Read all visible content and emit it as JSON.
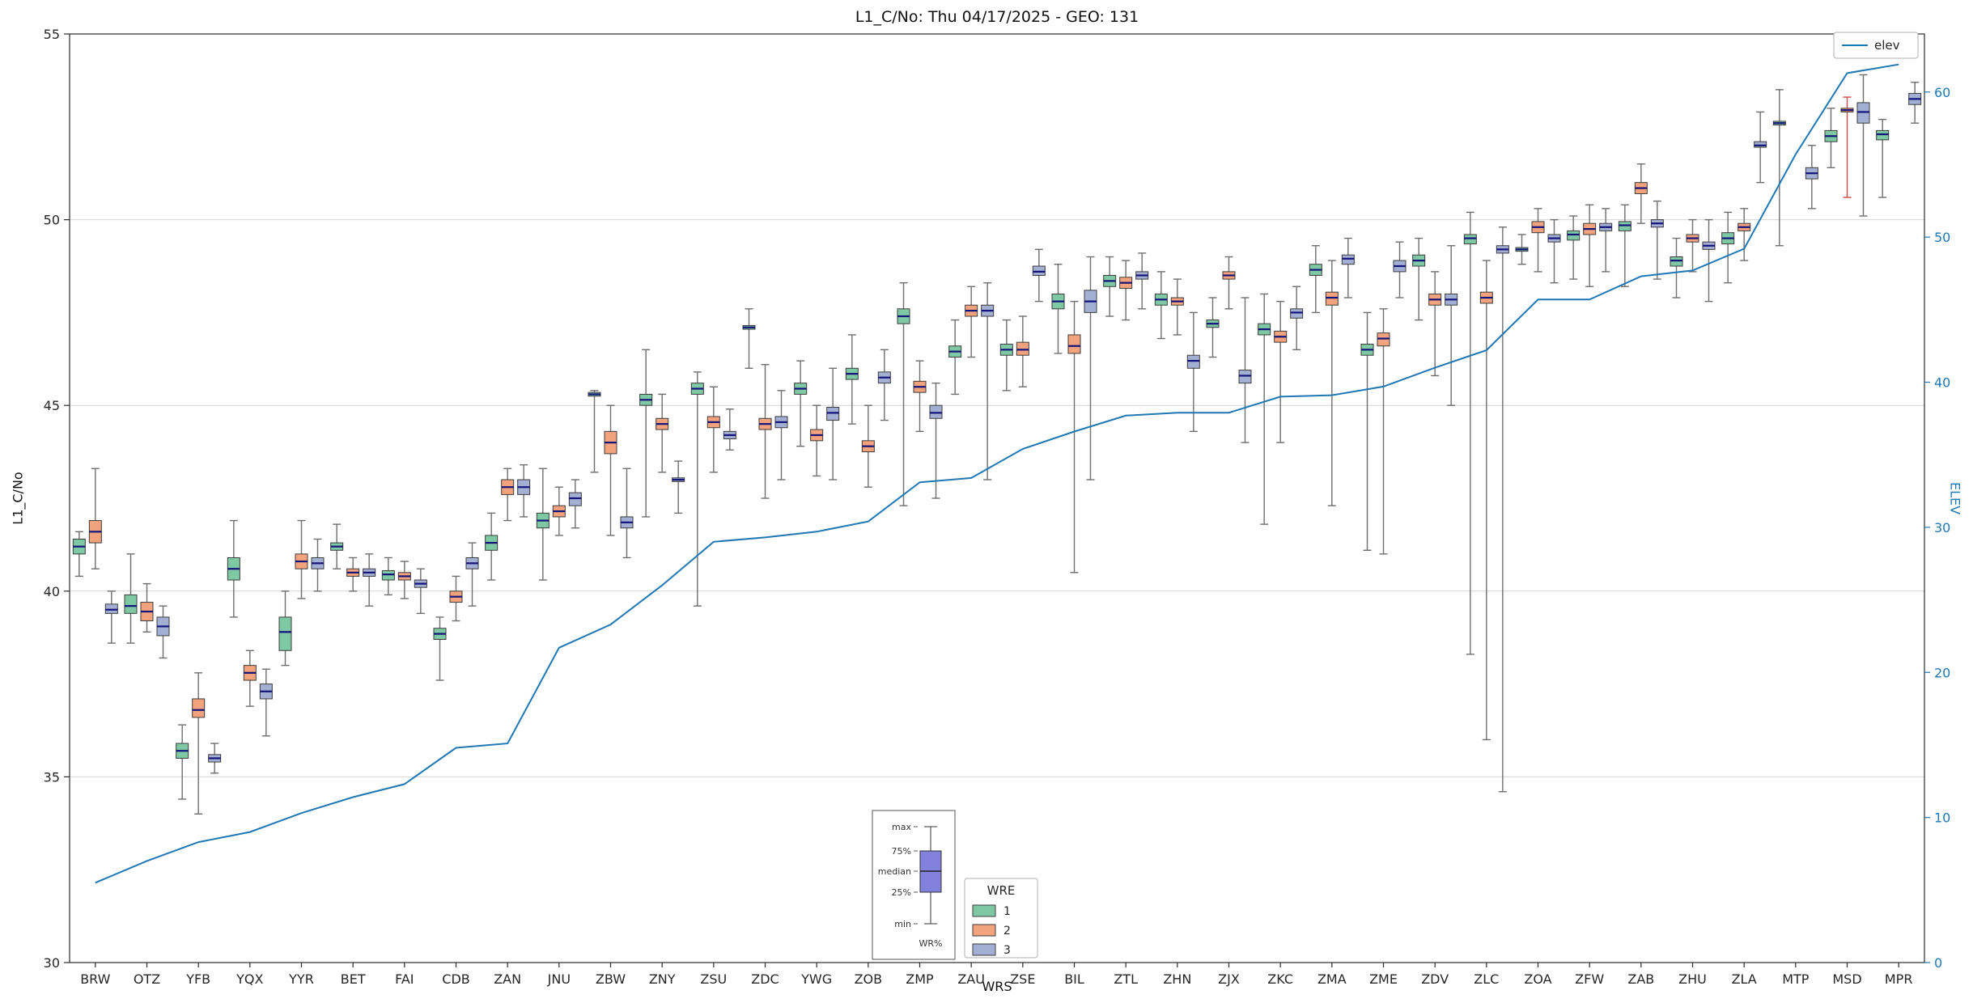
{
  "chart_data": {
    "type": "boxplot+line",
    "title": "L1_C/No: Thu 04/17/2025 - GEO: 131",
    "xlabel": "WRS",
    "ylabel": "L1_C/No",
    "y2label": "ELEV",
    "ylim": [
      30,
      55
    ],
    "y2lim": [
      0,
      64
    ],
    "yticks": [
      30,
      35,
      40,
      45,
      50,
      55
    ],
    "y2ticks": [
      0,
      10,
      20,
      30,
      40,
      50,
      60
    ],
    "grid": "horizontal-major",
    "legend": {
      "line_label": "elev",
      "line_color": "#1f77b4",
      "box_title": "WRE",
      "entries": [
        "1",
        "2",
        "3"
      ]
    },
    "inset": {
      "labels": [
        "max",
        "75%",
        "median",
        "25%",
        "min"
      ],
      "xlabel": "WR%",
      "box_color": "#8282dc"
    },
    "boxplot_semantics": [
      "min",
      "q1",
      "median",
      "q3",
      "max"
    ],
    "categories": [
      "BRW",
      "OTZ",
      "YFB",
      "YQX",
      "YYR",
      "BET",
      "FAI",
      "CDB",
      "ZAN",
      "JNU",
      "ZBW",
      "ZNY",
      "ZSU",
      "ZDC",
      "YWG",
      "ZOB",
      "ZMP",
      "ZAU",
      "ZSE",
      "BIL",
      "ZTL",
      "ZHN",
      "ZJX",
      "ZKC",
      "ZMA",
      "ZME",
      "ZDV",
      "ZLC",
      "ZOA",
      "ZFW",
      "ZAB",
      "ZHU",
      "ZLA",
      "MTP",
      "MSD",
      "MPR"
    ],
    "elev": [
      5.5,
      7.0,
      8.3,
      9.0,
      10.3,
      11.4,
      12.3,
      14.8,
      15.1,
      21.7,
      23.3,
      26.0,
      29.0,
      29.3,
      29.7,
      30.4,
      33.1,
      33.4,
      35.4,
      36.6,
      37.7,
      37.9,
      37.9,
      39.0,
      39.1,
      39.7,
      41.0,
      42.2,
      45.7,
      45.7,
      47.3,
      47.7,
      49.2,
      55.7,
      61.3,
      61.9
    ],
    "red_whisker": {
      "series": "2",
      "category": "MSD",
      "color": "#cf4a4a"
    },
    "series": [
      {
        "name": "1",
        "color": "#7ec8a4",
        "boxes": [
          [
            40.4,
            41.0,
            41.2,
            41.4,
            41.6
          ],
          [
            38.6,
            39.4,
            39.6,
            39.9,
            41.0
          ],
          [
            34.4,
            35.5,
            35.7,
            35.9,
            36.4
          ],
          [
            39.3,
            40.3,
            40.6,
            40.9,
            41.9
          ],
          [
            38.0,
            38.4,
            38.9,
            39.3,
            40.0
          ],
          [
            40.6,
            41.1,
            41.2,
            41.3,
            41.8
          ],
          [
            39.9,
            40.3,
            40.45,
            40.55,
            40.9
          ],
          [
            37.6,
            38.7,
            38.85,
            39.0,
            39.3
          ],
          [
            40.3,
            41.1,
            41.3,
            41.5,
            42.1
          ],
          [
            40.3,
            41.7,
            41.9,
            42.1,
            43.3
          ],
          [
            43.2,
            45.25,
            45.3,
            45.35,
            45.4
          ],
          [
            42.0,
            45.0,
            45.15,
            45.3,
            46.5
          ],
          [
            39.6,
            45.3,
            45.45,
            45.6,
            45.9
          ],
          [
            46.0,
            47.05,
            47.1,
            47.15,
            47.6
          ],
          [
            43.9,
            45.3,
            45.45,
            45.6,
            46.2
          ],
          [
            44.5,
            45.7,
            45.85,
            46.0,
            46.9
          ],
          [
            42.3,
            47.2,
            47.4,
            47.6,
            48.3
          ],
          [
            45.3,
            46.3,
            46.45,
            46.6,
            47.3
          ],
          [
            45.4,
            46.35,
            46.5,
            46.65,
            47.3
          ],
          [
            46.4,
            47.6,
            47.8,
            48.0,
            48.8
          ],
          [
            47.4,
            48.2,
            48.35,
            48.5,
            49.0
          ],
          [
            46.8,
            47.7,
            47.85,
            48.0,
            48.6
          ],
          [
            46.3,
            47.1,
            47.2,
            47.3,
            47.9
          ],
          [
            41.8,
            46.9,
            47.05,
            47.2,
            48.0
          ],
          [
            47.5,
            48.5,
            48.65,
            48.8,
            49.3
          ],
          [
            41.1,
            46.35,
            46.5,
            46.65,
            47.5
          ],
          [
            47.3,
            48.75,
            48.9,
            49.05,
            49.5
          ],
          [
            38.3,
            49.35,
            49.5,
            49.6,
            50.2
          ],
          [
            48.8,
            49.15,
            49.2,
            49.25,
            49.6
          ],
          [
            48.4,
            49.45,
            49.6,
            49.7,
            50.1
          ],
          [
            48.2,
            49.7,
            49.85,
            49.95,
            50.4
          ],
          [
            47.9,
            48.75,
            48.9,
            49.0,
            49.5
          ],
          [
            48.3,
            49.35,
            49.5,
            49.65,
            50.2
          ],
          [
            49.3,
            52.55,
            52.6,
            52.65,
            53.5
          ],
          [
            51.4,
            52.1,
            52.25,
            52.4,
            53.0
          ],
          [
            50.6,
            52.15,
            52.3,
            52.4,
            52.7
          ]
        ]
      },
      {
        "name": "2",
        "color": "#f2a27c",
        "boxes": [
          [
            40.6,
            41.3,
            41.6,
            41.9,
            43.3
          ],
          [
            38.9,
            39.2,
            39.45,
            39.7,
            40.2
          ],
          [
            34.0,
            36.6,
            36.8,
            37.1,
            37.8
          ],
          [
            36.9,
            37.6,
            37.8,
            38.0,
            38.4
          ],
          [
            39.8,
            40.6,
            40.8,
            41.0,
            41.9
          ],
          [
            40.0,
            40.4,
            40.5,
            40.6,
            40.9
          ],
          [
            39.8,
            40.3,
            40.4,
            40.5,
            40.8
          ],
          [
            39.2,
            39.7,
            39.85,
            40.0,
            40.4
          ],
          [
            41.9,
            42.6,
            42.8,
            43.0,
            43.3
          ],
          [
            41.5,
            42.0,
            42.15,
            42.3,
            42.8
          ],
          [
            41.5,
            43.7,
            44.0,
            44.3,
            45.0
          ],
          [
            43.2,
            44.35,
            44.5,
            44.65,
            45.3
          ],
          [
            43.2,
            44.4,
            44.55,
            44.7,
            45.5
          ],
          [
            42.5,
            44.35,
            44.5,
            44.65,
            46.1
          ],
          [
            43.1,
            44.05,
            44.2,
            44.35,
            45.0
          ],
          [
            42.8,
            43.75,
            43.9,
            44.05,
            45.0
          ],
          [
            44.3,
            45.35,
            45.5,
            45.65,
            46.2
          ],
          [
            46.3,
            47.4,
            47.55,
            47.7,
            48.2
          ],
          [
            45.5,
            46.35,
            46.5,
            46.7,
            47.4
          ],
          [
            40.5,
            46.4,
            46.6,
            46.9,
            47.8
          ],
          [
            47.3,
            48.15,
            48.3,
            48.45,
            48.9
          ],
          [
            46.9,
            47.7,
            47.8,
            47.9,
            48.4
          ],
          [
            47.6,
            48.4,
            48.5,
            48.6,
            49.0
          ],
          [
            44.0,
            46.7,
            46.85,
            47.0,
            47.8
          ],
          [
            42.3,
            47.7,
            47.9,
            48.05,
            48.9
          ],
          [
            41.0,
            46.6,
            46.8,
            46.95,
            47.6
          ],
          [
            45.8,
            47.7,
            47.85,
            48.0,
            48.6
          ],
          [
            36.0,
            47.75,
            47.9,
            48.05,
            48.9
          ],
          [
            48.6,
            49.65,
            49.8,
            49.95,
            50.3
          ],
          [
            48.2,
            49.6,
            49.75,
            49.9,
            50.4
          ],
          [
            49.9,
            50.7,
            50.85,
            51.0,
            51.5
          ],
          [
            48.6,
            49.4,
            49.5,
            49.6,
            50.0
          ],
          [
            48.9,
            49.7,
            49.8,
            49.9,
            50.3
          ],
          null,
          [
            50.6,
            52.9,
            52.95,
            53.0,
            53.3
          ],
          null
        ]
      },
      {
        "name": "3",
        "color": "#a4afd4",
        "boxes": [
          [
            38.6,
            39.4,
            39.5,
            39.65,
            40.0
          ],
          [
            38.2,
            38.8,
            39.05,
            39.3,
            39.6
          ],
          [
            35.1,
            35.4,
            35.5,
            35.6,
            35.9
          ],
          [
            36.1,
            37.1,
            37.3,
            37.5,
            37.9
          ],
          [
            40.0,
            40.6,
            40.75,
            40.9,
            41.4
          ],
          [
            39.6,
            40.4,
            40.5,
            40.6,
            41.0
          ],
          [
            39.4,
            40.1,
            40.2,
            40.3,
            40.6
          ],
          [
            39.6,
            40.6,
            40.75,
            40.9,
            41.3
          ],
          [
            42.0,
            42.6,
            42.8,
            43.0,
            43.4
          ],
          [
            41.7,
            42.3,
            42.5,
            42.65,
            43.0
          ],
          [
            40.9,
            41.7,
            41.85,
            42.0,
            43.3
          ],
          [
            42.1,
            42.95,
            43.0,
            43.05,
            43.5
          ],
          [
            43.8,
            44.1,
            44.2,
            44.3,
            44.9
          ],
          [
            43.0,
            44.4,
            44.55,
            44.7,
            45.4
          ],
          [
            43.0,
            44.6,
            44.8,
            44.95,
            46.0
          ],
          [
            44.6,
            45.6,
            45.75,
            45.9,
            46.5
          ],
          [
            42.5,
            44.65,
            44.8,
            45.0,
            45.6
          ],
          [
            43.0,
            47.4,
            47.55,
            47.7,
            48.3
          ],
          [
            47.8,
            48.5,
            48.6,
            48.75,
            49.2
          ],
          [
            43.0,
            47.5,
            47.8,
            48.1,
            49.0
          ],
          [
            47.6,
            48.4,
            48.5,
            48.6,
            49.1
          ],
          [
            44.3,
            46.0,
            46.2,
            46.35,
            47.5
          ],
          [
            44.0,
            45.6,
            45.8,
            45.95,
            47.9
          ],
          [
            46.5,
            47.35,
            47.5,
            47.6,
            48.2
          ],
          [
            47.9,
            48.8,
            48.95,
            49.05,
            49.5
          ],
          [
            47.9,
            48.6,
            48.75,
            48.9,
            49.4
          ],
          [
            45.0,
            47.7,
            47.85,
            48.0,
            49.3
          ],
          [
            34.6,
            49.1,
            49.2,
            49.3,
            49.8
          ],
          [
            48.3,
            49.4,
            49.5,
            49.6,
            50.0
          ],
          [
            48.6,
            49.7,
            49.8,
            49.9,
            50.3
          ],
          [
            48.4,
            49.8,
            49.9,
            50.0,
            50.5
          ],
          [
            47.8,
            49.2,
            49.3,
            49.4,
            50.0
          ],
          [
            51.0,
            51.95,
            52.0,
            52.1,
            52.9
          ],
          [
            50.3,
            51.1,
            51.25,
            51.4,
            52.0
          ],
          [
            50.1,
            52.6,
            52.9,
            53.15,
            53.9
          ],
          [
            52.6,
            53.1,
            53.25,
            53.4,
            53.7
          ]
        ]
      }
    ]
  }
}
